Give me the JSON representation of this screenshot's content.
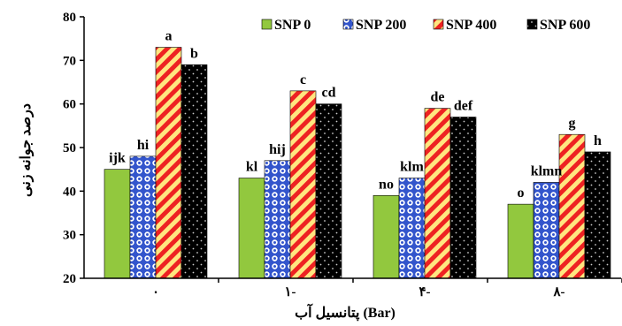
{
  "chart_data": {
    "type": "bar",
    "categories": [
      "٠",
      "١-",
      "۴-",
      "٨-"
    ],
    "xlabel": "پتانسیل آب (Bar)",
    "ylabel": "درصد جوانه زنی",
    "ylim": [
      20,
      80
    ],
    "yticks": [
      20,
      30,
      40,
      50,
      60,
      70,
      80
    ],
    "grid": false,
    "legend_position": "top-right",
    "series": [
      {
        "name": "SNP 0",
        "values": [
          45,
          43,
          39,
          37
        ],
        "labels": [
          "ijk",
          "kl",
          "no",
          "o"
        ],
        "color": "#92c83e",
        "pattern": "solid"
      },
      {
        "name": "SNP 200",
        "values": [
          48,
          47,
          43,
          42
        ],
        "labels": [
          "hi",
          "hij",
          "klm",
          "klmn"
        ],
        "color": "#3355cc",
        "pattern": "circles"
      },
      {
        "name": "SNP 400",
        "values": [
          73,
          63,
          59,
          53
        ],
        "labels": [
          "a",
          "c",
          "de",
          "g"
        ],
        "color": "#ee2222",
        "pattern": "diagonal-stripes"
      },
      {
        "name": "SNP 600",
        "values": [
          69,
          60,
          57,
          49
        ],
        "labels": [
          "b",
          "cd",
          "def",
          "h"
        ],
        "color": "#000000",
        "pattern": "dots"
      }
    ]
  }
}
